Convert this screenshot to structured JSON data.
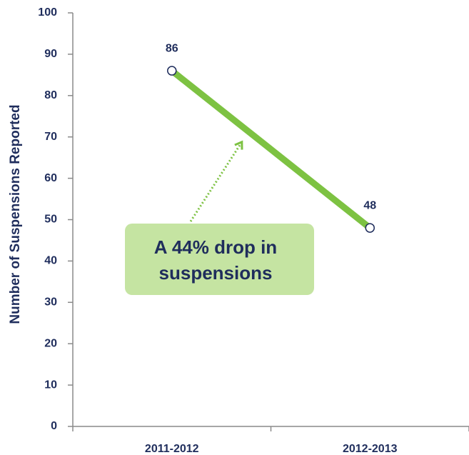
{
  "chart_data": {
    "type": "line",
    "y_label": "Number of Suspensions Reported",
    "categories": [
      "2011-2012",
      "2012-2013"
    ],
    "series": [
      {
        "name": "Suspensions",
        "color": "#7dc242",
        "values": [
          86,
          48
        ]
      }
    ],
    "ylim": [
      0,
      100
    ],
    "yticks": [
      0,
      10,
      20,
      30,
      40,
      50,
      60,
      70,
      80,
      90,
      100
    ],
    "annotation": [
      "A 44% drop in",
      "suspensions"
    ]
  }
}
